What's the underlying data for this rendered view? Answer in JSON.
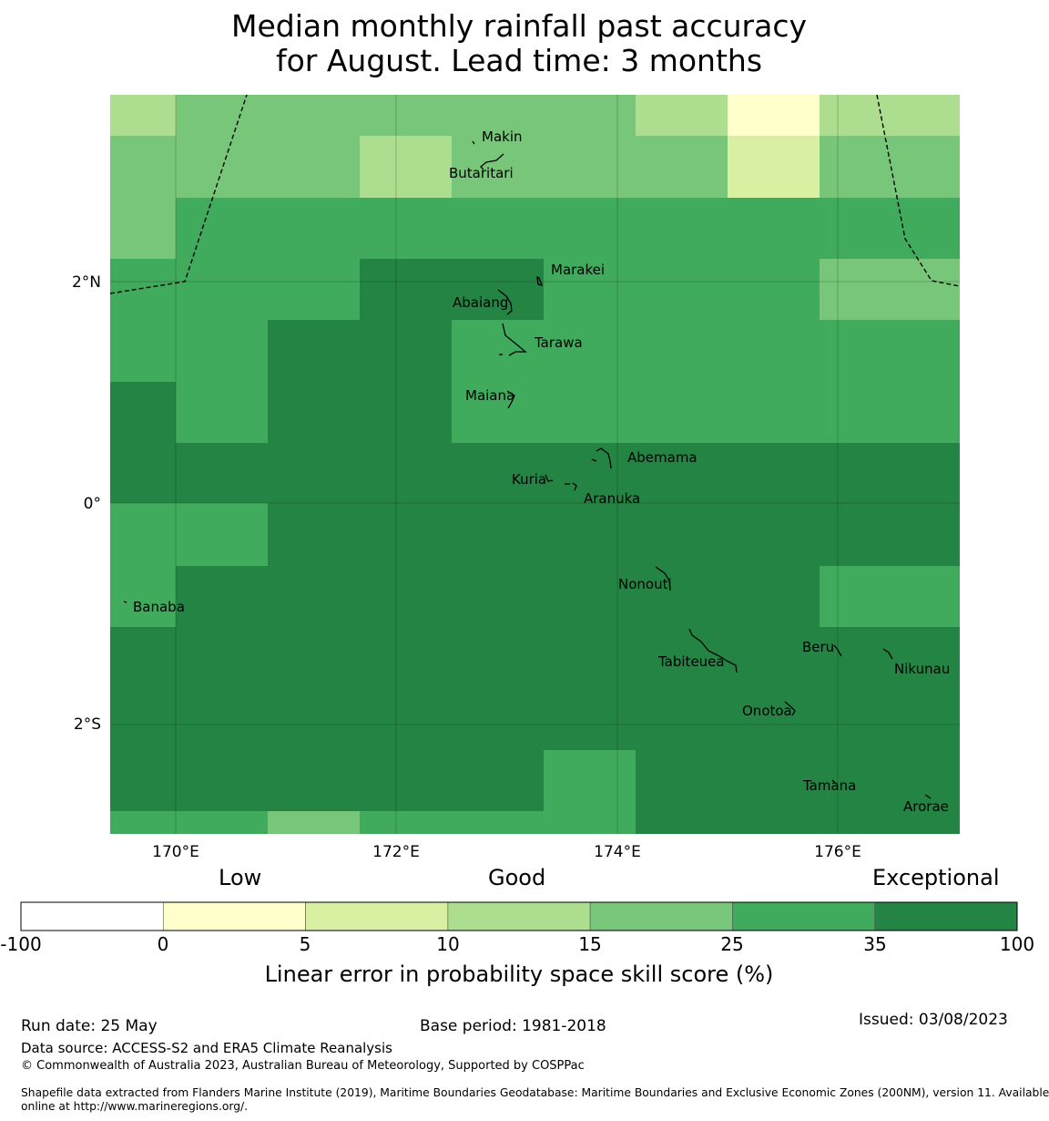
{
  "title": {
    "line1": "Median monthly rainfall past accuracy",
    "line2": "for August. Lead time: 3 months"
  },
  "map": {
    "y_tick_labels": [
      "2°N",
      "0°",
      "2°S"
    ],
    "x_tick_labels": [
      "170°E",
      "172°E",
      "174°E",
      "176°E"
    ],
    "grid_values": [
      [
        10,
        15,
        15,
        15,
        15,
        15,
        10,
        0,
        10
      ],
      [
        15,
        15,
        15,
        10,
        15,
        15,
        15,
        5,
        15
      ],
      [
        15,
        25,
        25,
        25,
        25,
        25,
        25,
        25,
        25
      ],
      [
        25,
        25,
        25,
        35,
        35,
        25,
        25,
        25,
        15
      ],
      [
        25,
        25,
        35,
        35,
        25,
        25,
        25,
        25,
        25
      ],
      [
        35,
        25,
        35,
        35,
        25,
        25,
        25,
        25,
        25
      ],
      [
        35,
        35,
        35,
        35,
        35,
        35,
        35,
        35,
        35
      ],
      [
        25,
        25,
        35,
        35,
        35,
        35,
        35,
        35,
        35
      ],
      [
        25,
        35,
        35,
        35,
        35,
        35,
        35,
        35,
        25
      ],
      [
        35,
        35,
        35,
        35,
        35,
        35,
        35,
        35,
        35
      ],
      [
        35,
        35,
        35,
        35,
        35,
        35,
        35,
        35,
        35
      ],
      [
        35,
        35,
        35,
        35,
        35,
        25,
        35,
        35,
        35
      ],
      [
        25,
        25,
        15,
        25,
        25,
        25,
        35,
        35,
        35
      ]
    ],
    "places": [
      "Makin",
      "Butaritari",
      "Marakei",
      "Abaiang",
      "Tarawa",
      "Maiana",
      "Abemama",
      "Kuria",
      "Aranuka",
      "Nonouti",
      "Banaba",
      "Tabiteuea",
      "Beru",
      "Nikunau",
      "Onotoa",
      "Tamana",
      "Arorae"
    ]
  },
  "colorbar": {
    "categories": [
      {
        "label": "Low"
      },
      {
        "label": "Good"
      },
      {
        "label": "Exceptional"
      }
    ],
    "bins": [
      {
        "from": -100,
        "to": 0,
        "color": "#ffffff"
      },
      {
        "from": 0,
        "to": 5,
        "color": "#ffffcc"
      },
      {
        "from": 5,
        "to": 10,
        "color": "#d9f0a3"
      },
      {
        "from": 10,
        "to": 15,
        "color": "#addd8e"
      },
      {
        "from": 15,
        "to": 25,
        "color": "#78c679"
      },
      {
        "from": 25,
        "to": 35,
        "color": "#41ab5d"
      },
      {
        "from": 35,
        "to": 100,
        "color": "#238443"
      }
    ],
    "tick_labels": [
      "-100",
      "0",
      "5",
      "10",
      "15",
      "25",
      "35",
      "100"
    ],
    "axis_label": "Linear error in probability space skill score (%)"
  },
  "footer": {
    "run_date": "Run date: 25 May",
    "base_period": "Base period: 1981-2018",
    "issued": "Issued: 03/08/2023",
    "data_source": "Data source: ACCESS-S2 and ERA5 Climate Reanalysis",
    "copyright": "© Commonwealth of Australia 2023, Australian Bureau of Meteorology, Supported by COSPPac",
    "shapefile_line1": "Shapefile data extracted from Flanders Marine Institute (2019), Maritime Boundaries Geodatabase: Maritime Boundaries and Exclusive Economic Zones (200NM), version 11. Available",
    "shapefile_line2": "online at http://www.marineregions.org/."
  }
}
